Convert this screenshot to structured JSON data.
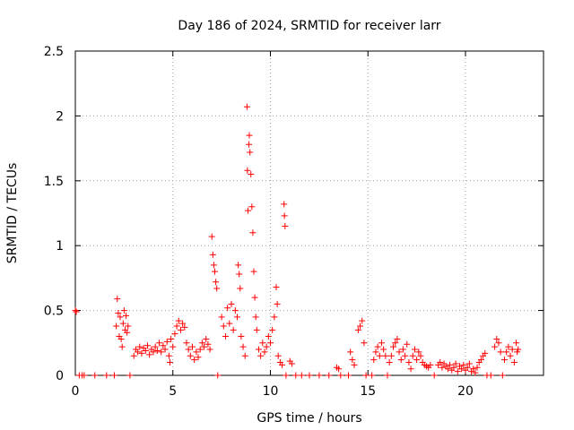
{
  "chart_data": {
    "type": "scatter",
    "title": "Day 186 of 2024, SRMTID for receiver larr",
    "xlabel": "GPS time / hours",
    "ylabel": "SRMTID / TECUs",
    "xlim": [
      0,
      24
    ],
    "ylim": [
      0,
      2.5
    ],
    "xticks": [
      0,
      5,
      10,
      15,
      20
    ],
    "yticks": [
      0,
      0.5,
      1,
      1.5,
      2,
      2.5
    ],
    "xtick_labels": [
      "0",
      "5",
      "10",
      "15",
      "20"
    ],
    "ytick_labels": [
      "0",
      "0.5",
      "1",
      "1.5",
      "2",
      "2.5"
    ],
    "grid": true,
    "legend": "none",
    "marker": "+",
    "series": [
      {
        "name": "larr",
        "color": "#ff0000",
        "points": [
          [
            0.0,
            0.5
          ],
          [
            0.05,
            0.49
          ],
          [
            0.2,
            0.0
          ],
          [
            0.35,
            0.0
          ],
          [
            0.45,
            0.0
          ],
          [
            1.0,
            0.0
          ],
          [
            1.6,
            0.0
          ],
          [
            2.0,
            0.0
          ],
          [
            2.1,
            0.38
          ],
          [
            2.15,
            0.59
          ],
          [
            2.2,
            0.48
          ],
          [
            2.25,
            0.3
          ],
          [
            2.3,
            0.45
          ],
          [
            2.35,
            0.28
          ],
          [
            2.4,
            0.22
          ],
          [
            2.45,
            0.4
          ],
          [
            2.5,
            0.5
          ],
          [
            2.55,
            0.35
          ],
          [
            2.6,
            0.46
          ],
          [
            2.65,
            0.33
          ],
          [
            2.7,
            0.38
          ],
          [
            2.8,
            0.0
          ],
          [
            3.0,
            0.15
          ],
          [
            3.1,
            0.2
          ],
          [
            3.2,
            0.18
          ],
          [
            3.3,
            0.22
          ],
          [
            3.4,
            0.17
          ],
          [
            3.5,
            0.21
          ],
          [
            3.6,
            0.19
          ],
          [
            3.7,
            0.23
          ],
          [
            3.8,
            0.16
          ],
          [
            3.9,
            0.2
          ],
          [
            4.0,
            0.18
          ],
          [
            4.1,
            0.22
          ],
          [
            4.2,
            0.19
          ],
          [
            4.3,
            0.25
          ],
          [
            4.4,
            0.18
          ],
          [
            4.5,
            0.23
          ],
          [
            4.6,
            0.2
          ],
          [
            4.7,
            0.26
          ],
          [
            4.8,
            0.15
          ],
          [
            4.85,
            0.1
          ],
          [
            4.9,
            0.28
          ],
          [
            5.0,
            0.22
          ],
          [
            5.1,
            0.32
          ],
          [
            5.2,
            0.38
          ],
          [
            5.3,
            0.42
          ],
          [
            5.4,
            0.35
          ],
          [
            5.5,
            0.4
          ],
          [
            5.6,
            0.37
          ],
          [
            5.7,
            0.25
          ],
          [
            5.8,
            0.2
          ],
          [
            5.9,
            0.15
          ],
          [
            6.0,
            0.22
          ],
          [
            6.1,
            0.12
          ],
          [
            6.2,
            0.18
          ],
          [
            6.3,
            0.14
          ],
          [
            6.4,
            0.2
          ],
          [
            6.5,
            0.25
          ],
          [
            6.6,
            0.22
          ],
          [
            6.7,
            0.28
          ],
          [
            6.8,
            0.24
          ],
          [
            6.9,
            0.2
          ],
          [
            7.0,
            1.07
          ],
          [
            7.05,
            0.93
          ],
          [
            7.1,
            0.85
          ],
          [
            7.15,
            0.8
          ],
          [
            7.2,
            0.72
          ],
          [
            7.25,
            0.67
          ],
          [
            7.3,
            0.0
          ],
          [
            7.5,
            0.45
          ],
          [
            7.6,
            0.38
          ],
          [
            7.7,
            0.3
          ],
          [
            7.8,
            0.52
          ],
          [
            7.9,
            0.4
          ],
          [
            8.0,
            0.55
          ],
          [
            8.1,
            0.35
          ],
          [
            8.2,
            0.5
          ],
          [
            8.3,
            0.45
          ],
          [
            8.35,
            0.85
          ],
          [
            8.4,
            0.78
          ],
          [
            8.45,
            0.67
          ],
          [
            8.5,
            0.3
          ],
          [
            8.6,
            0.22
          ],
          [
            8.7,
            0.15
          ],
          [
            8.8,
            2.07
          ],
          [
            8.82,
            1.58
          ],
          [
            8.85,
            1.27
          ],
          [
            8.9,
            1.78
          ],
          [
            8.92,
            1.85
          ],
          [
            8.95,
            1.72
          ],
          [
            9.0,
            1.55
          ],
          [
            9.05,
            1.3
          ],
          [
            9.1,
            1.1
          ],
          [
            9.15,
            0.8
          ],
          [
            9.2,
            0.6
          ],
          [
            9.25,
            0.45
          ],
          [
            9.3,
            0.35
          ],
          [
            9.4,
            0.2
          ],
          [
            9.5,
            0.15
          ],
          [
            9.6,
            0.25
          ],
          [
            9.7,
            0.18
          ],
          [
            9.8,
            0.22
          ],
          [
            9.9,
            0.3
          ],
          [
            10.0,
            0.25
          ],
          [
            10.1,
            0.35
          ],
          [
            10.2,
            0.45
          ],
          [
            10.3,
            0.68
          ],
          [
            10.35,
            0.55
          ],
          [
            10.4,
            0.15
          ],
          [
            10.5,
            0.1
          ],
          [
            10.6,
            0.08
          ],
          [
            10.7,
            1.32
          ],
          [
            10.72,
            1.23
          ],
          [
            10.75,
            1.15
          ],
          [
            10.8,
            0.0
          ],
          [
            11.0,
            0.11
          ],
          [
            11.1,
            0.09
          ],
          [
            11.3,
            0.0
          ],
          [
            11.6,
            0.0
          ],
          [
            12.0,
            0.0
          ],
          [
            12.5,
            0.0
          ],
          [
            13.0,
            0.0
          ],
          [
            13.4,
            0.06
          ],
          [
            13.5,
            0.05
          ],
          [
            13.6,
            0.0
          ],
          [
            14.0,
            0.0
          ],
          [
            14.1,
            0.18
          ],
          [
            14.2,
            0.12
          ],
          [
            14.3,
            0.08
          ],
          [
            14.5,
            0.35
          ],
          [
            14.6,
            0.38
          ],
          [
            14.7,
            0.42
          ],
          [
            14.8,
            0.25
          ],
          [
            14.9,
            0.0
          ],
          [
            15.2,
            0.0
          ],
          [
            15.3,
            0.12
          ],
          [
            15.4,
            0.18
          ],
          [
            15.5,
            0.22
          ],
          [
            15.6,
            0.15
          ],
          [
            15.7,
            0.25
          ],
          [
            15.8,
            0.2
          ],
          [
            15.9,
            0.15
          ],
          [
            16.0,
            0.0
          ],
          [
            16.1,
            0.1
          ],
          [
            16.2,
            0.15
          ],
          [
            16.3,
            0.22
          ],
          [
            16.4,
            0.25
          ],
          [
            16.5,
            0.28
          ],
          [
            16.6,
            0.18
          ],
          [
            16.7,
            0.12
          ],
          [
            16.8,
            0.2
          ],
          [
            16.9,
            0.15
          ],
          [
            17.0,
            0.24
          ],
          [
            17.1,
            0.1
          ],
          [
            17.2,
            0.05
          ],
          [
            17.3,
            0.15
          ],
          [
            17.4,
            0.2
          ],
          [
            17.5,
            0.12
          ],
          [
            17.6,
            0.18
          ],
          [
            17.7,
            0.15
          ],
          [
            17.8,
            0.1
          ],
          [
            17.9,
            0.08
          ],
          [
            18.0,
            0.07
          ],
          [
            18.1,
            0.06
          ],
          [
            18.2,
            0.08
          ],
          [
            18.4,
            0.0
          ],
          [
            18.6,
            0.08
          ],
          [
            18.7,
            0.1
          ],
          [
            18.8,
            0.06
          ],
          [
            18.9,
            0.09
          ],
          [
            19.0,
            0.07
          ],
          [
            19.1,
            0.05
          ],
          [
            19.2,
            0.08
          ],
          [
            19.3,
            0.04
          ],
          [
            19.4,
            0.06
          ],
          [
            19.5,
            0.09
          ],
          [
            19.6,
            0.03
          ],
          [
            19.7,
            0.07
          ],
          [
            19.8,
            0.05
          ],
          [
            19.9,
            0.08
          ],
          [
            20.0,
            0.04
          ],
          [
            20.1,
            0.06
          ],
          [
            20.2,
            0.09
          ],
          [
            20.3,
            0.03
          ],
          [
            20.4,
            0.05
          ],
          [
            20.5,
            0.02
          ],
          [
            20.6,
            0.06
          ],
          [
            20.7,
            0.1
          ],
          [
            20.8,
            0.12
          ],
          [
            20.9,
            0.15
          ],
          [
            21.0,
            0.17
          ],
          [
            21.1,
            0.0
          ],
          [
            21.3,
            0.0
          ],
          [
            21.5,
            0.22
          ],
          [
            21.6,
            0.28
          ],
          [
            21.7,
            0.25
          ],
          [
            21.8,
            0.18
          ],
          [
            21.9,
            0.0
          ],
          [
            22.0,
            0.12
          ],
          [
            22.1,
            0.18
          ],
          [
            22.2,
            0.22
          ],
          [
            22.3,
            0.15
          ],
          [
            22.4,
            0.2
          ],
          [
            22.5,
            0.1
          ],
          [
            22.6,
            0.25
          ],
          [
            22.65,
            0.18
          ],
          [
            22.7,
            0.2
          ]
        ]
      }
    ]
  }
}
